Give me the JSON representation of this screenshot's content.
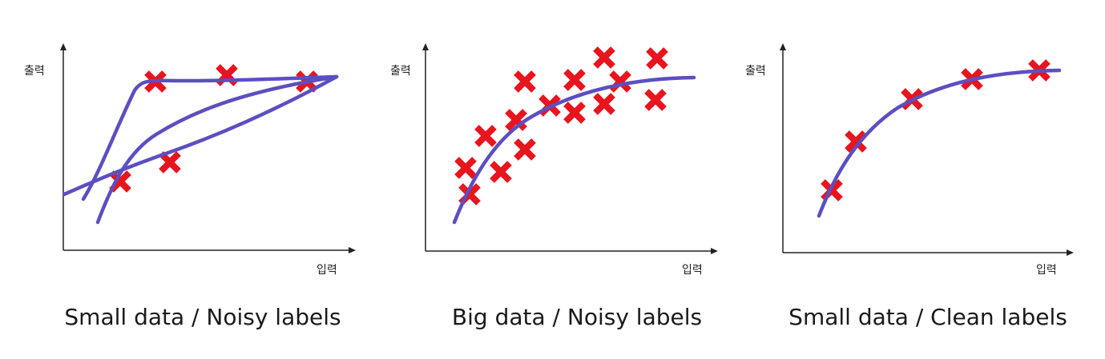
{
  "panels": [
    {
      "caption": "Small data / Noisy labels",
      "y_label": "출력",
      "x_label": "입력"
    },
    {
      "caption": "Big data / Noisy labels",
      "y_label": "출력",
      "x_label": "입력"
    },
    {
      "caption": "Small data / Clean labels",
      "y_label": "출력",
      "x_label": "입력"
    }
  ],
  "colors": {
    "curve": "#5b4fc0",
    "marker": "#e8141e",
    "axis": "#222222"
  }
}
